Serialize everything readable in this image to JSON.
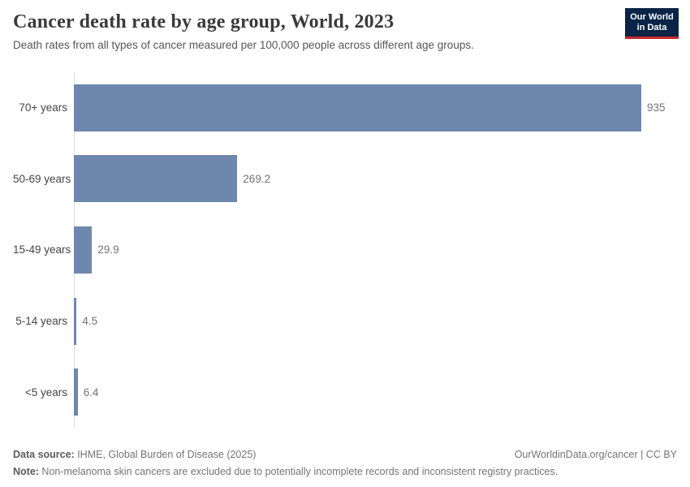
{
  "header": {
    "title": "Cancer death rate by age group, World, 2023",
    "subtitle": "Death rates from all types of cancer measured per 100,000 people across different age groups.",
    "logo_line1": "Our World",
    "logo_line2": "in Data"
  },
  "chart_data": {
    "type": "bar",
    "orientation": "horizontal",
    "title": "Cancer death rate by age group, World, 2023",
    "categories": [
      "70+ years",
      "50-69 years",
      "15-49 years",
      "5-14 years",
      "<5 years"
    ],
    "values": [
      935,
      269.2,
      29.9,
      4.5,
      6.4
    ],
    "value_labels": [
      "935",
      "269.2",
      "29.9",
      "4.5",
      "6.4"
    ],
    "xlabel": "",
    "ylabel": "",
    "xlim": [
      0,
      935
    ],
    "unit": "deaths per 100,000 people",
    "grid": false,
    "legend": false,
    "bar_color": "#6e87ac"
  },
  "colors": {
    "bar": "#6e87ac",
    "axis_line": "#dcdcdc",
    "logo_bg": "#0a2447",
    "logo_accent": "#c7292f",
    "title_text": "#3a3a3a",
    "value_text": "#737373"
  },
  "footer": {
    "data_source_label": "Data source:",
    "data_source_text": " IHME, Global Burden of Disease (2025)",
    "attribution": "OurWorldinData.org/cancer | CC BY",
    "note_label": "Note:",
    "note_text": " Non-melanoma skin cancers are excluded due to potentially incomplete records and inconsistent registry practices."
  }
}
